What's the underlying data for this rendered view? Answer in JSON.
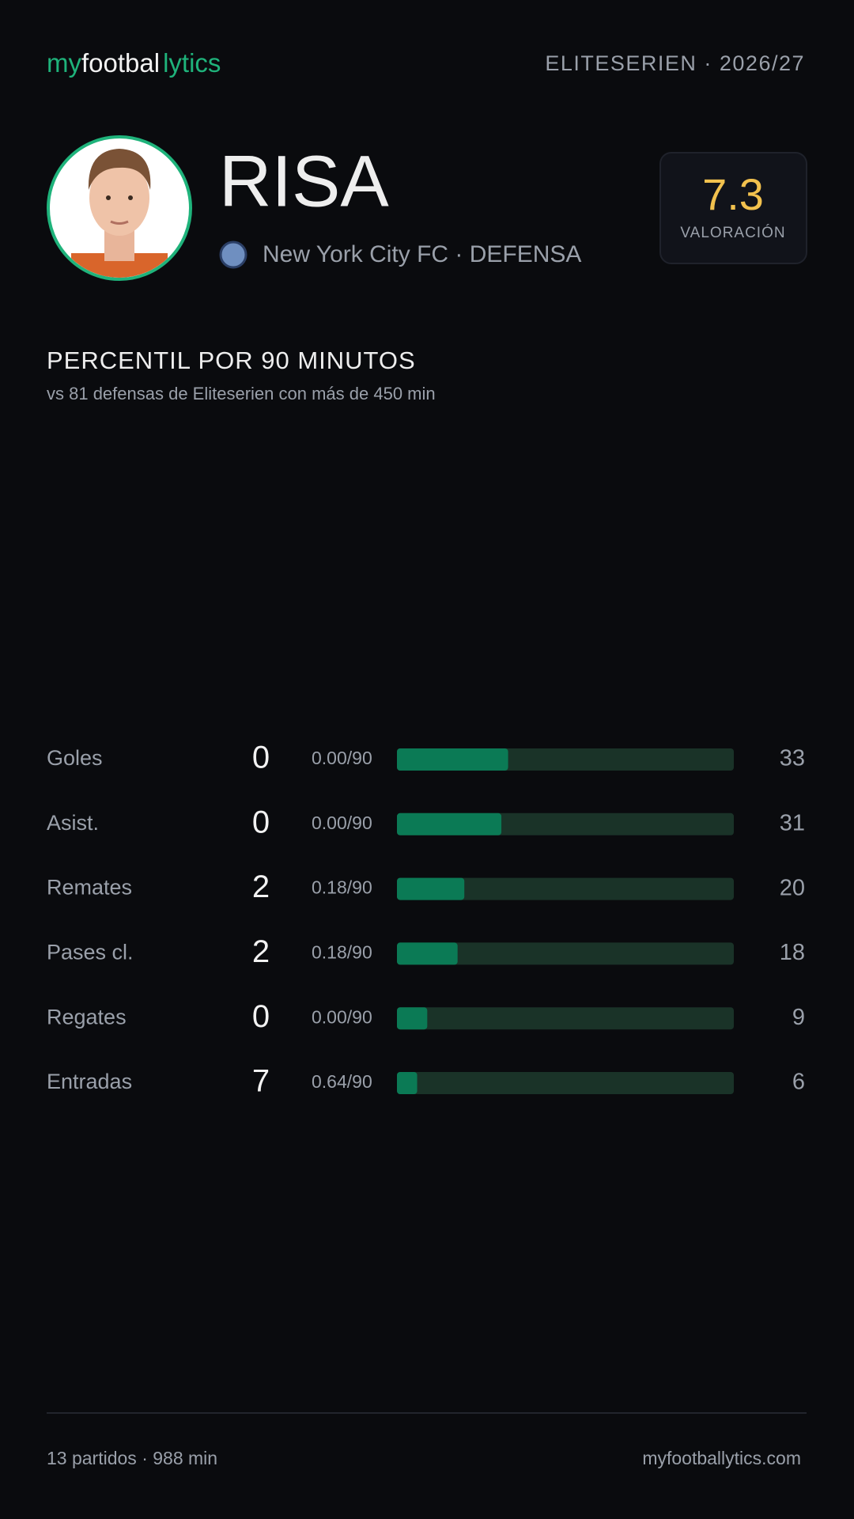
{
  "header": {
    "logo": [
      "my",
      "footbal",
      "lytics"
    ],
    "league": "ELITESERIEN · 2026/27"
  },
  "player": {
    "name": "RISA",
    "team": "New York City FC · DEFENSA",
    "rating": 7.3,
    "rating_label": "VALORACIÓN"
  },
  "section": {
    "title": "PERCENTIL POR 90 MINUTOS",
    "subtitle": "vs 81 defensas de Eliteserien con más de 450 min"
  },
  "chart_data": {
    "type": "bar",
    "orientation": "horizontal",
    "color": "#0b7a55",
    "track_color": "#1a3328",
    "xlim": [
      0,
      100
    ],
    "categories": [
      "Goles",
      "Asist.",
      "Remates",
      "Pases cl.",
      "Regates",
      "Entradas"
    ],
    "counts": [
      0,
      0,
      2,
      2,
      0,
      7
    ],
    "per90": [
      "0.00/90",
      "0.00/90",
      "0.18/90",
      "0.18/90",
      "0.00/90",
      "0.64/90"
    ],
    "values": [
      33,
      31,
      20,
      18,
      9,
      6
    ]
  },
  "footer": {
    "left": "13 partidos · 988 min",
    "right": "myfootballytics.com"
  }
}
